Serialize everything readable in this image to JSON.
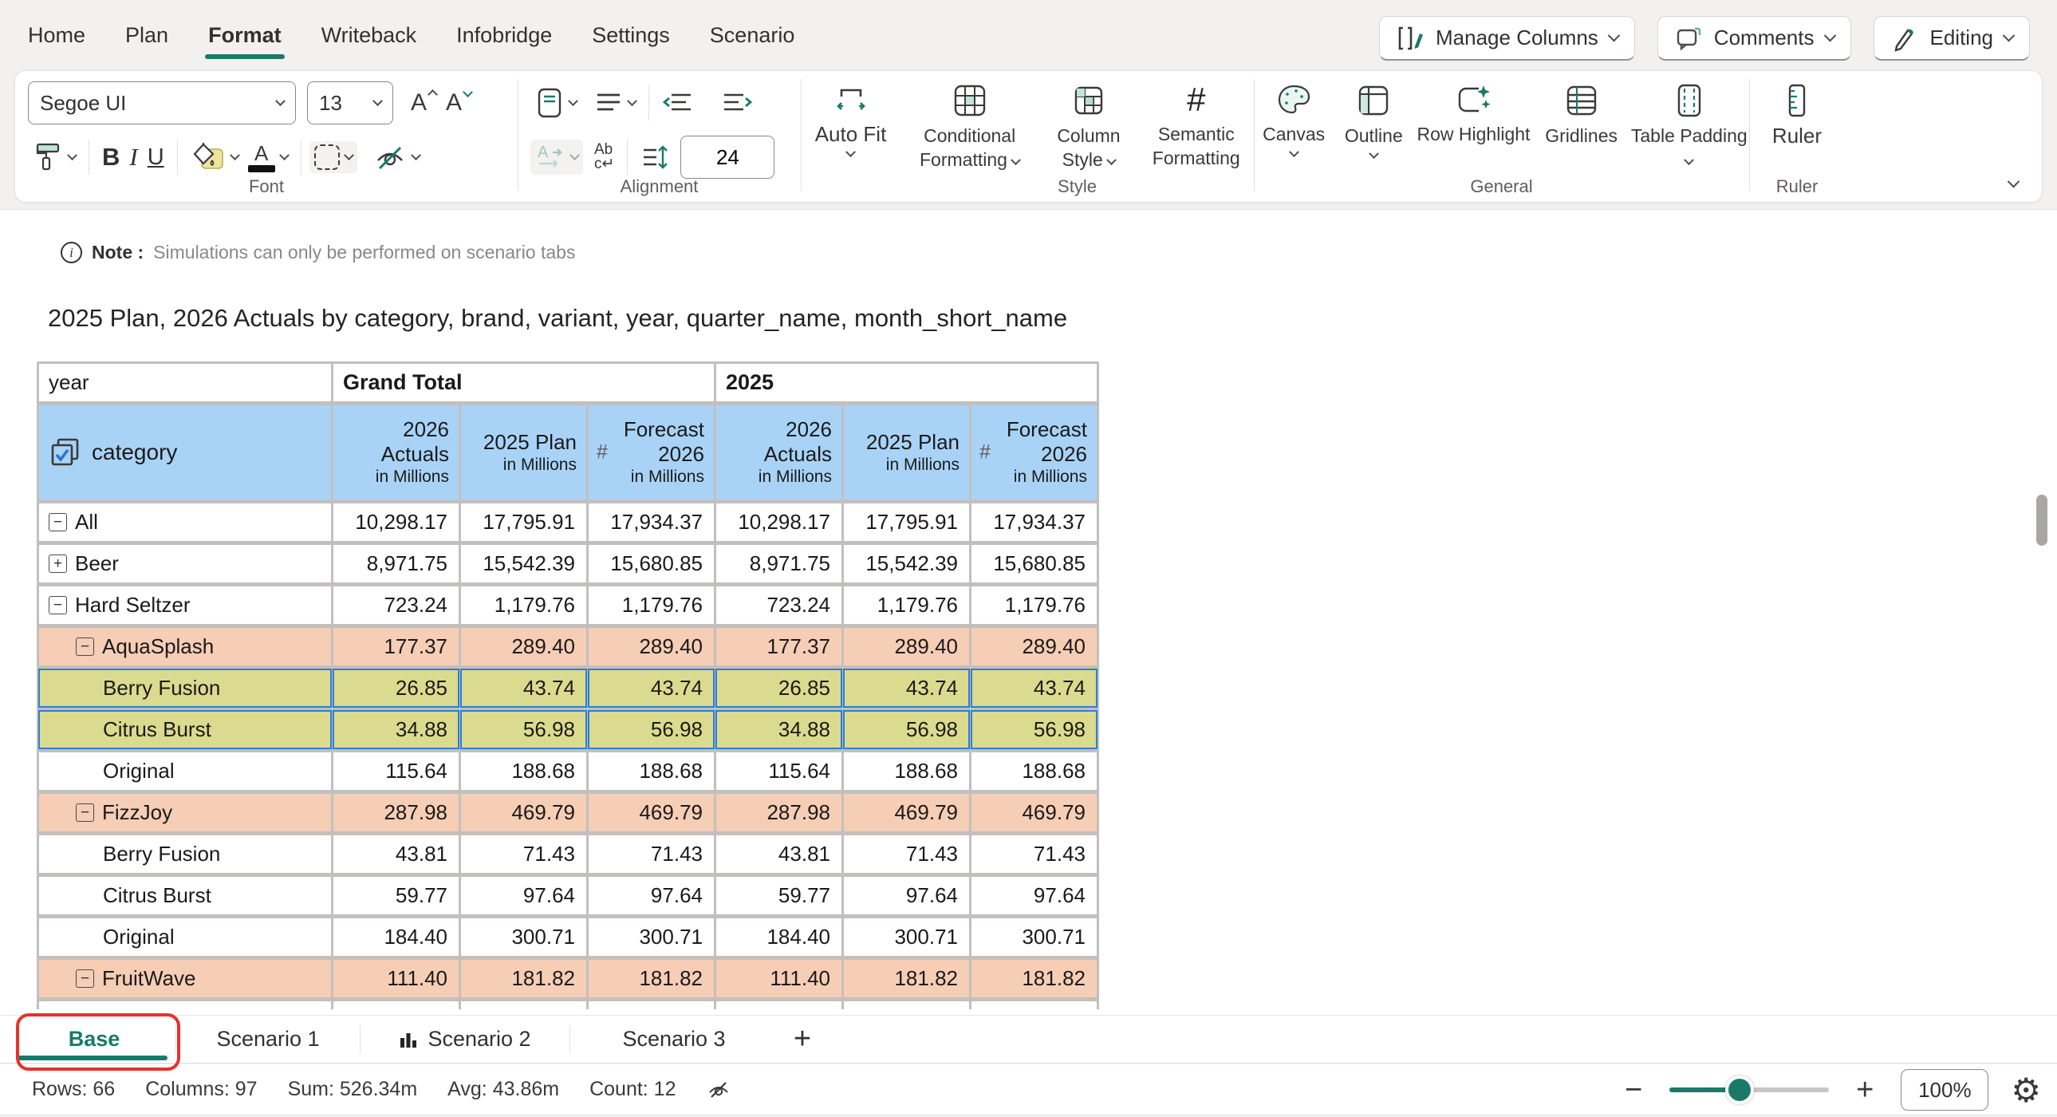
{
  "colors": {
    "accent": "#1a7a68",
    "header_blue": "#a8d3f7",
    "salmon": "#f6cdb5",
    "khaki": "#dbdb8f",
    "selection_blue": "#2e7ed6",
    "annotation_red": "#e5322c",
    "fill_swatch_yellow": "#f0e49b"
  },
  "ribbon": {
    "tabs": [
      "Home",
      "Plan",
      "Format",
      "Writeback",
      "Infobridge",
      "Settings",
      "Scenario"
    ],
    "active_tab": "Format",
    "actions": [
      {
        "label": "Manage Columns",
        "icon": "manage-columns-icon"
      },
      {
        "label": "Comments",
        "icon": "comments-icon"
      },
      {
        "label": "Editing",
        "icon": "editing-icon"
      }
    ],
    "font": {
      "label": "Font",
      "name_value": "Segoe UI",
      "size_value": "13",
      "bold": "B",
      "italic": "I",
      "underline": "U"
    },
    "alignment": {
      "label": "Alignment",
      "wrap_top": "Ab",
      "wrap_bottom": "c↵",
      "row_height_value": "24"
    },
    "autofit": {
      "label": "Auto Fit"
    },
    "style": {
      "label": "Style",
      "conditional": "Conditional Formatting",
      "column": "Column Style",
      "semantic": "Semantic Formatting",
      "hash": "#"
    },
    "general": {
      "label": "General",
      "canvas": "Canvas",
      "outline": "Outline",
      "row_highlight": "Row Highlight",
      "gridlines": "Gridlines",
      "table_padding": "Table Padding"
    },
    "ruler": {
      "label": "Ruler",
      "item": "Ruler"
    }
  },
  "note": {
    "prefix": "Note :",
    "text": "Simulations can only be performed on scenario tabs"
  },
  "title": "2025 Plan, 2026 Actuals by category, brand, variant, year, quarter_name, month_short_name",
  "table": {
    "corner_label": "year",
    "group_headers": [
      "Grand Total",
      "2025"
    ],
    "measure_headers": [
      {
        "lines": [
          "2026",
          "Actuals"
        ],
        "unit": "in Millions",
        "hash": false
      },
      {
        "lines": [
          "2025 Plan"
        ],
        "unit": "in Millions",
        "hash": false
      },
      {
        "lines": [
          "Forecast",
          "2026"
        ],
        "unit": "in Millions",
        "hash": true
      }
    ],
    "row_dimension": "category",
    "rows": [
      {
        "name": "All",
        "level": 0,
        "expand": "minus",
        "style": "white",
        "selected": false,
        "values": [
          "10,298.17",
          "17,795.91",
          "17,934.37",
          "10,298.17",
          "17,795.91",
          "17,934.37"
        ]
      },
      {
        "name": "Beer",
        "level": 0,
        "expand": "plus",
        "style": "white",
        "selected": false,
        "values": [
          "8,971.75",
          "15,542.39",
          "15,680.85",
          "8,971.75",
          "15,542.39",
          "15,680.85"
        ]
      },
      {
        "name": "Hard Seltzer",
        "level": 0,
        "expand": "minus",
        "style": "white",
        "selected": false,
        "values": [
          "723.24",
          "1,179.76",
          "1,179.76",
          "723.24",
          "1,179.76",
          "1,179.76"
        ]
      },
      {
        "name": "AquaSplash",
        "level": 1,
        "expand": "minus",
        "style": "salmon",
        "selected": false,
        "values": [
          "177.37",
          "289.40",
          "289.40",
          "177.37",
          "289.40",
          "289.40"
        ]
      },
      {
        "name": "Berry Fusion",
        "level": 2,
        "expand": "none",
        "style": "khaki",
        "selected": true,
        "values": [
          "26.85",
          "43.74",
          "43.74",
          "26.85",
          "43.74",
          "43.74"
        ]
      },
      {
        "name": "Citrus Burst",
        "level": 2,
        "expand": "none",
        "style": "khaki",
        "selected": true,
        "values": [
          "34.88",
          "56.98",
          "56.98",
          "34.88",
          "56.98",
          "56.98"
        ]
      },
      {
        "name": "Original",
        "level": 2,
        "expand": "none",
        "style": "white",
        "selected": false,
        "values": [
          "115.64",
          "188.68",
          "188.68",
          "115.64",
          "188.68",
          "188.68"
        ]
      },
      {
        "name": "FizzJoy",
        "level": 1,
        "expand": "minus",
        "style": "salmon",
        "selected": false,
        "values": [
          "287.98",
          "469.79",
          "469.79",
          "287.98",
          "469.79",
          "469.79"
        ]
      },
      {
        "name": "Berry Fusion",
        "level": 2,
        "expand": "none",
        "style": "white",
        "selected": false,
        "values": [
          "43.81",
          "71.43",
          "71.43",
          "43.81",
          "71.43",
          "71.43"
        ]
      },
      {
        "name": "Citrus Burst",
        "level": 2,
        "expand": "none",
        "style": "white",
        "selected": false,
        "values": [
          "59.77",
          "97.64",
          "97.64",
          "59.77",
          "97.64",
          "97.64"
        ]
      },
      {
        "name": "Original",
        "level": 2,
        "expand": "none",
        "style": "white",
        "selected": false,
        "values": [
          "184.40",
          "300.71",
          "300.71",
          "184.40",
          "300.71",
          "300.71"
        ]
      },
      {
        "name": "FruitWave",
        "level": 1,
        "expand": "minus",
        "style": "salmon",
        "selected": false,
        "values": [
          "111.40",
          "181.82",
          "181.82",
          "111.40",
          "181.82",
          "181.82"
        ]
      }
    ]
  },
  "sheet_tabs": {
    "tabs": [
      {
        "label": "Base",
        "active": true,
        "annotated": true,
        "icon": null
      },
      {
        "label": "Scenario 1",
        "active": false,
        "annotated": false,
        "icon": null
      },
      {
        "label": "Scenario 2",
        "active": false,
        "annotated": false,
        "icon": "bar-chart-icon"
      },
      {
        "label": "Scenario 3",
        "active": false,
        "annotated": false,
        "icon": null
      }
    ],
    "add_label": "+"
  },
  "status_bar": {
    "items": [
      "Rows: 66",
      "Columns: 97",
      "Sum: 526.34m",
      "Avg: 43.86m",
      "Count: 12"
    ]
  },
  "zoom_controls": {
    "minus": "−",
    "plus": "+",
    "level": "100%",
    "gear": "⚙"
  }
}
